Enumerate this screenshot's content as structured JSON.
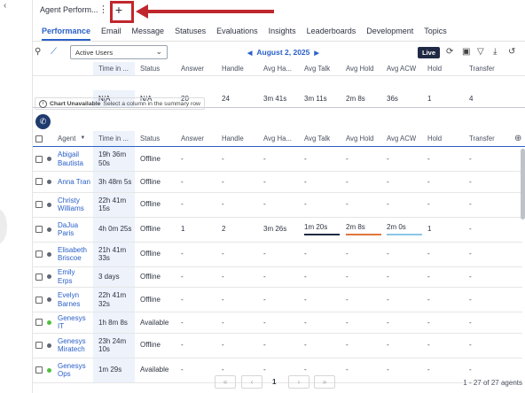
{
  "app": {
    "tab_title": "Agent Perform...",
    "kebab_glyph": "⋮",
    "add_tab_glyph": "+"
  },
  "subtabs": [
    {
      "label": "Performance",
      "active": true
    },
    {
      "label": "Email"
    },
    {
      "label": "Message"
    },
    {
      "label": "Statuses"
    },
    {
      "label": "Evaluations"
    },
    {
      "label": "Insights"
    },
    {
      "label": "Leaderboards"
    },
    {
      "label": "Development"
    },
    {
      "label": "Topics"
    }
  ],
  "toolbar": {
    "filter_value": "Active Users",
    "date": "August 2, 2025",
    "live_label": "Live",
    "icons": [
      "search-icon",
      "chart-icon",
      "refresh-icon",
      "save-icon",
      "filter-icon",
      "download-icon",
      "undo-icon"
    ]
  },
  "columns": {
    "time_in_trunc": "Time in ...",
    "status": "Status",
    "answer": "Answer",
    "handle": "Handle",
    "avg_handle_trunc": "Avg Ha...",
    "avg_talk": "Avg Talk",
    "avg_hold": "Avg Hold",
    "avg_acw": "Avg ACW",
    "hold": "Hold",
    "transfer": "Transfer",
    "agent": "Agent",
    "sort_glyph": "▼"
  },
  "summary": {
    "time_in": "N/A",
    "status": "N/A",
    "answer": "20",
    "handle": "24",
    "avg_handle": "3m 41s",
    "avg_talk": "3m 11s",
    "avg_hold": "2m 8s",
    "avg_acw": "36s",
    "hold": "1",
    "transfer": "4"
  },
  "notice": {
    "title": "Chart Unavailable",
    "text": "Select a column in the summary row"
  },
  "agents": [
    {
      "name": "Abigail Bautista",
      "time_in": "19h 36m 50s",
      "status": "Offline",
      "answer": "-",
      "handle": "-",
      "avg_handle": "-",
      "avg_talk": "-",
      "avg_hold": "-",
      "avg_acw": "-",
      "hold": "-",
      "transfer": "-",
      "presence": "offline",
      "tall": true
    },
    {
      "name": "Anna Tran",
      "time_in": "3h 48m 5s",
      "status": "Offline",
      "answer": "-",
      "handle": "-",
      "avg_handle": "-",
      "avg_talk": "-",
      "avg_hold": "-",
      "avg_acw": "-",
      "hold": "-",
      "transfer": "-",
      "presence": "offline"
    },
    {
      "name": "Christy Williams",
      "time_in": "22h 41m 15s",
      "status": "Offline",
      "answer": "-",
      "handle": "-",
      "avg_handle": "-",
      "avg_talk": "-",
      "avg_hold": "-",
      "avg_acw": "-",
      "hold": "-",
      "transfer": "-",
      "presence": "offline",
      "tall": true
    },
    {
      "name": "DaJua Paris",
      "time_in": "4h 0m 25s",
      "status": "Offline",
      "answer": "1",
      "handle": "2",
      "avg_handle": "3m 26s",
      "avg_talk": "1m 20s",
      "avg_hold": "2m 8s",
      "avg_acw": "2m 0s",
      "hold": "1",
      "transfer": "-",
      "presence": "offline",
      "tall": true,
      "underlined": true
    },
    {
      "name": "Elisabeth Briscoe",
      "time_in": "21h 41m 33s",
      "status": "Offline",
      "answer": "-",
      "handle": "-",
      "avg_handle": "-",
      "avg_talk": "-",
      "avg_hold": "-",
      "avg_acw": "-",
      "hold": "-",
      "transfer": "-",
      "presence": "offline",
      "tall": true
    },
    {
      "name": "Emily Erps",
      "time_in": "3 days",
      "status": "Offline",
      "answer": "-",
      "handle": "-",
      "avg_handle": "-",
      "avg_talk": "-",
      "avg_hold": "-",
      "avg_acw": "-",
      "hold": "-",
      "transfer": "-",
      "presence": "offline"
    },
    {
      "name": "Evelyn Barnes",
      "time_in": "22h 41m 32s",
      "status": "Offline",
      "answer": "-",
      "handle": "-",
      "avg_handle": "-",
      "avg_talk": "-",
      "avg_hold": "-",
      "avg_acw": "-",
      "hold": "-",
      "transfer": "-",
      "presence": "offline",
      "tall": true
    },
    {
      "name": "Genesys IT",
      "time_in": "1h 8m 8s",
      "status": "Available",
      "answer": "-",
      "handle": "-",
      "avg_handle": "-",
      "avg_talk": "-",
      "avg_hold": "-",
      "avg_acw": "-",
      "hold": "-",
      "transfer": "-",
      "presence": "available"
    },
    {
      "name": "Genesys Miratech",
      "time_in": "23h 24m 10s",
      "status": "Offline",
      "answer": "-",
      "handle": "-",
      "avg_handle": "-",
      "avg_talk": "-",
      "avg_hold": "-",
      "avg_acw": "-",
      "hold": "-",
      "transfer": "-",
      "presence": "offline",
      "tall": true
    },
    {
      "name": "Genesys Ops",
      "time_in": "1m 29s",
      "status": "Available",
      "answer": "-",
      "handle": "-",
      "avg_handle": "-",
      "avg_talk": "-",
      "avg_hold": "-",
      "avg_acw": "-",
      "hold": "-",
      "transfer": "-",
      "presence": "available",
      "tall": true
    }
  ],
  "pager": {
    "first": "«",
    "prev": "‹",
    "page": "1",
    "next": "›",
    "last": "»",
    "count_text": "1 - 27 of 27 agents"
  },
  "colors": {
    "accent": "#2a60c8",
    "annotation_red": "#c0272d",
    "available_green": "#4fbf3f",
    "offline_gray": "#5f6673"
  }
}
